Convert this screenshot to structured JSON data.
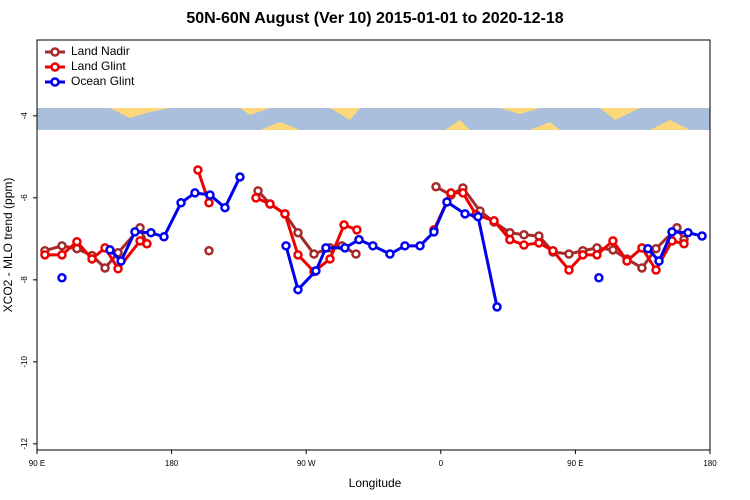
{
  "chart_data": {
    "type": "line",
    "title": "50N-60N August (Ver 10)   2015-01-01 to 2020-12-18",
    "x_label": "Longitude",
    "y_label": "XCO2 - MLO trend (ppm)",
    "xlim": [
      90,
      540
    ],
    "ylim": [
      -12.15,
      -2.15
    ],
    "xticks": [
      {
        "value": 90,
        "label": "90 E"
      },
      180,
      {
        "value": 270,
        "label": "90 W"
      },
      {
        "value": 360,
        "label": "0"
      },
      {
        "value": 450,
        "label": "90 E"
      },
      {
        "value": 540,
        "label": "180"
      }
    ],
    "yticks": [
      -12,
      -10,
      -8,
      -6,
      -4
    ],
    "legend": "top-left",
    "series": [
      {
        "name": "Land Nadir",
        "color": "#a52a2a",
        "x": [
          95.3,
          106.7,
          116.7,
          126.8,
          135.5,
          144.2,
          158.9,
          163.5,
          184,
          205,
          226,
          237.8,
          245.8,
          255.8,
          264.5,
          275.2,
          285.9,
          293.9,
          303.3,
          330,
          356.8,
          366.8,
          374.8,
          386.2,
          395.6,
          406.2,
          415.6,
          425.6,
          435,
          445.7,
          455,
          464.4,
          475.1,
          484.5,
          494.5,
          503.9,
          517.9,
          522.6
        ],
        "values": [
          -7.29,
          -7.17,
          -7.24,
          -7.41,
          -7.71,
          -7.34,
          -6.73,
          -7.12,
          null,
          -7.29,
          null,
          -5.83,
          -6.15,
          -6.39,
          -6.85,
          -7.37,
          -7.22,
          -7.17,
          -7.37,
          null,
          -5.73,
          -5.93,
          -5.76,
          -6.32,
          -6.59,
          -6.85,
          -6.9,
          -6.93,
          -7.32,
          -7.37,
          -7.29,
          -7.22,
          -7.27,
          -7.49,
          -7.71,
          -7.24,
          -6.73,
          -7.02
        ]
      },
      {
        "name": "Land Glint",
        "color": "#ee0000",
        "x": [
          95.3,
          106.7,
          116.7,
          126.8,
          135.5,
          144.2,
          158.9,
          163.5,
          180,
          197.6,
          205,
          226,
          236.4,
          245.8,
          255.8,
          264.5,
          275.2,
          285.9,
          295.3,
          303.9,
          330,
          355.4,
          366.8,
          374.8,
          383.5,
          395.6,
          406.2,
          415.6,
          425.6,
          435,
          445.7,
          455,
          464.4,
          475.1,
          484.5,
          494.5,
          503.9,
          514.6,
          522.6
        ],
        "values": [
          -7.39,
          -7.39,
          -7.07,
          -7.49,
          -7.22,
          -7.73,
          -7.05,
          -7.12,
          null,
          -5.32,
          -6.12,
          null,
          -6.0,
          -6.15,
          -6.39,
          -7.39,
          -7.8,
          -7.49,
          -6.66,
          -6.78,
          null,
          -6.78,
          -5.88,
          -5.88,
          -6.41,
          -6.56,
          -7.02,
          -7.15,
          -7.1,
          -7.29,
          -7.76,
          -7.39,
          -7.39,
          -7.05,
          -7.54,
          -7.22,
          -7.76,
          -7.05,
          -7.12
        ]
      },
      {
        "name": "Ocean Glint",
        "color": "#0000ee",
        "x": [
          106.7,
          120,
          138.8,
          146.2,
          155.5,
          166.2,
          174.9,
          186.3,
          195.6,
          205.7,
          215.7,
          225.7,
          240,
          256.5,
          264.5,
          276.5,
          283.2,
          295.9,
          305.3,
          314.6,
          326,
          336,
          346.1,
          355.4,
          364.1,
          376.2,
          384.9,
          397.6,
          430,
          465.7,
          480,
          498.5,
          505.9,
          514.6,
          525.3,
          534.7
        ],
        "values": [
          -7.95,
          null,
          -7.27,
          -7.54,
          -6.83,
          -6.85,
          -6.95,
          -6.12,
          -5.88,
          -5.93,
          -6.24,
          -5.49,
          null,
          -7.17,
          -8.24,
          -7.78,
          -7.22,
          -7.22,
          -7.02,
          -7.17,
          -7.37,
          -7.17,
          -7.17,
          -6.83,
          -6.1,
          -6.39,
          -6.46,
          -8.66,
          null,
          -7.95,
          null,
          -7.24,
          -7.54,
          -6.83,
          -6.85,
          -6.93
        ]
      }
    ]
  }
}
